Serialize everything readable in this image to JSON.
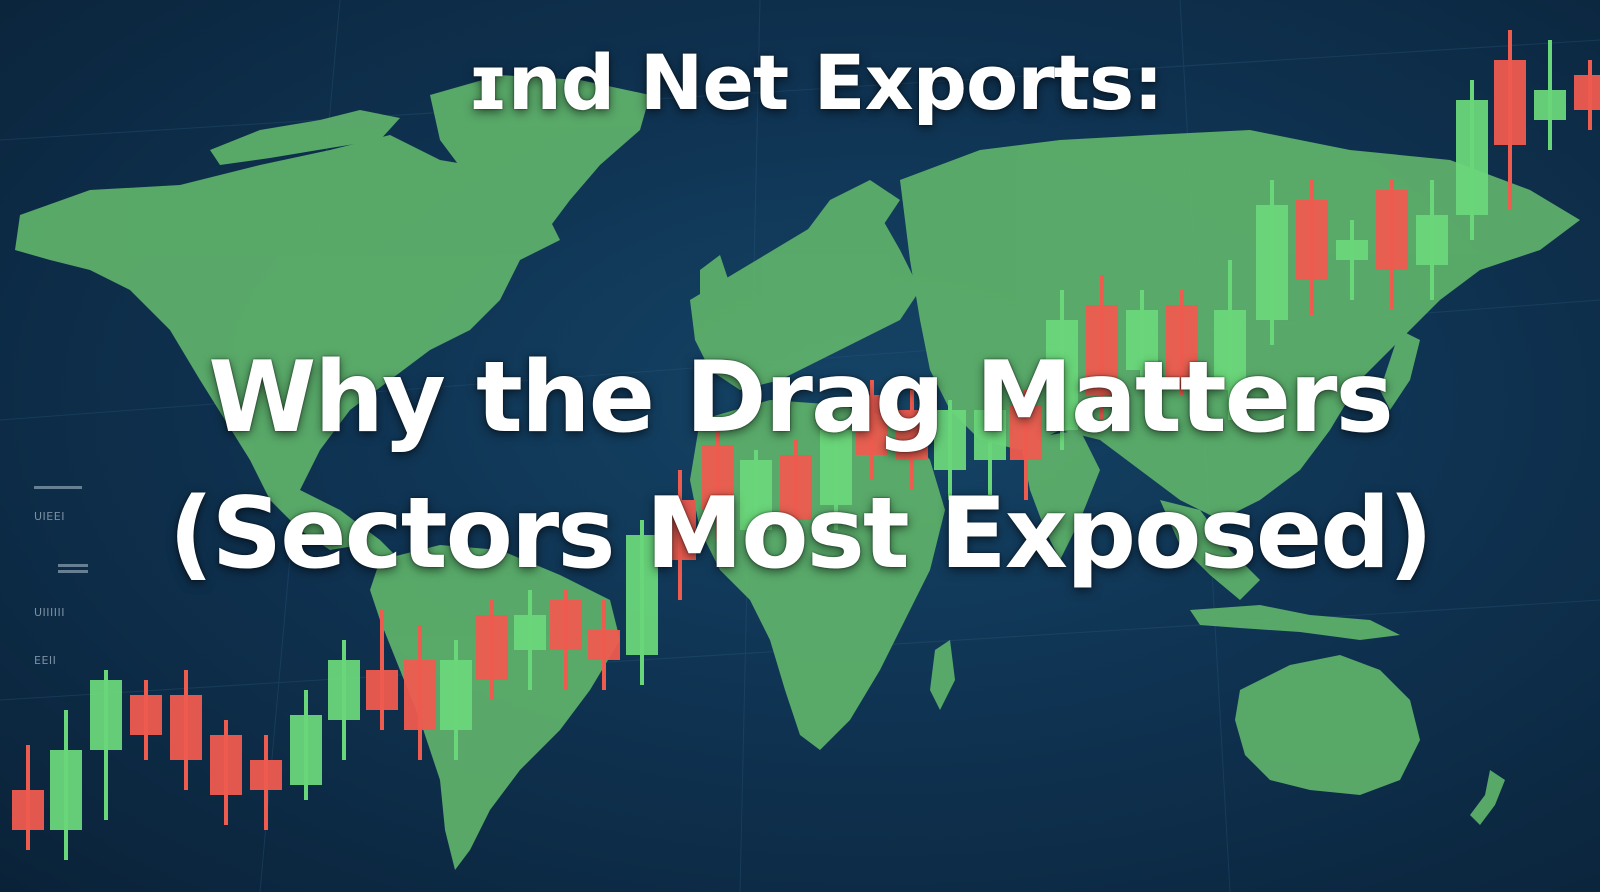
{
  "titles": {
    "top": "ɪnd Net Exports:",
    "main_line1": "Why the Drag Matters",
    "main_line2": "(Sectors Most Exposed)"
  },
  "side_labels": [
    "UIEEI",
    "UIIIIII",
    "EEII"
  ],
  "colors": {
    "background": "#0f3352",
    "land": "#5fb36b",
    "candle_up": "#6ad67a",
    "candle_down": "#ee5b4f"
  }
}
